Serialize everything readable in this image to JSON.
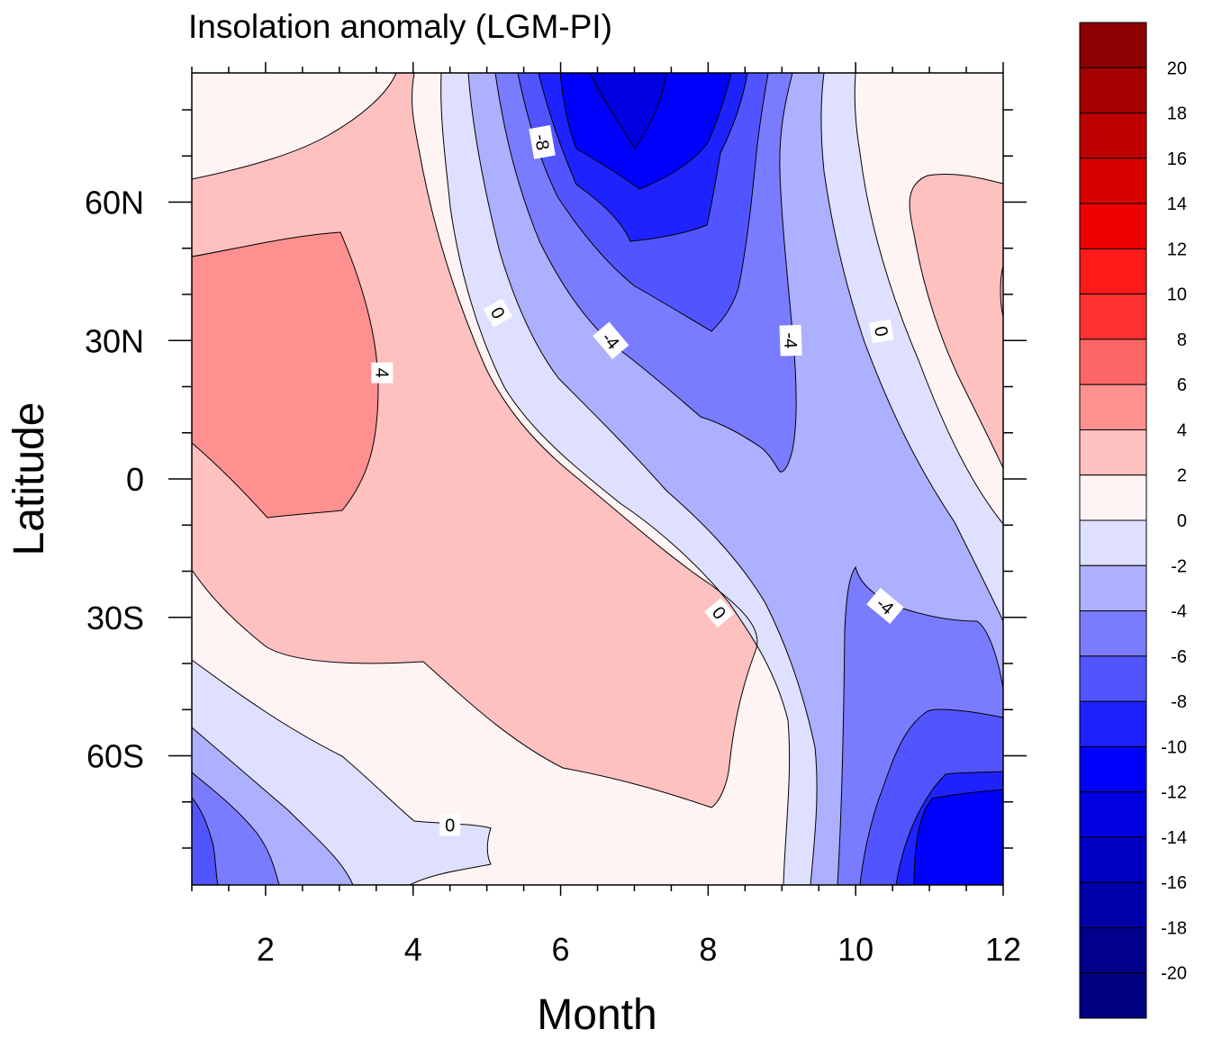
{
  "chart_data": {
    "type": "contour",
    "title": "Insolation anomaly (LGM-PI)",
    "xlabel": "Month",
    "ylabel": "Latitude",
    "xlim": [
      1,
      12
    ],
    "ylim": [
      -88,
      88
    ],
    "xticks": [
      2,
      4,
      6,
      8,
      10,
      12
    ],
    "yticks": [
      {
        "value": 60,
        "label": "60N"
      },
      {
        "value": 30,
        "label": "30N"
      },
      {
        "value": 0,
        "label": "0"
      },
      {
        "value": -30,
        "label": "30S"
      },
      {
        "value": -60,
        "label": "60S"
      }
    ],
    "colorbar": {
      "levels": [
        20,
        18,
        16,
        14,
        12,
        10,
        8,
        6,
        4,
        2,
        0,
        -2,
        -4,
        -6,
        -8,
        -10,
        -12,
        -14,
        -16,
        -18,
        -20
      ],
      "colors": [
        "#8b0000",
        "#a50000",
        "#bf0000",
        "#d90000",
        "#f00000",
        "#ff1a1a",
        "#ff3333",
        "#ff6666",
        "#ff9090",
        "#ffc0c0",
        "#fff4f4",
        "#dfe0ff",
        "#adafff",
        "#7a7cff",
        "#5255ff",
        "#1e22ff",
        "#0000ff",
        "#0000e0",
        "#0000c4",
        "#0000a8",
        "#00008b",
        "#000080"
      ]
    },
    "contour_labels": [
      {
        "text": "-8",
        "month": 5.75,
        "lat": 73,
        "angle": 80
      },
      {
        "text": "0",
        "month": 5.15,
        "lat": 36,
        "angle": 60
      },
      {
        "text": "-4",
        "month": 6.68,
        "lat": 30,
        "angle": 50
      },
      {
        "text": "-4",
        "month": 9.12,
        "lat": 30,
        "angle": 88
      },
      {
        "text": "0",
        "month": 10.35,
        "lat": 32,
        "angle": 80
      },
      {
        "text": "4",
        "month": 3.58,
        "lat": 23,
        "angle": 90
      },
      {
        "text": "0",
        "month": 8.15,
        "lat": -29,
        "angle": 50
      },
      {
        "text": "-4",
        "month": 10.4,
        "lat": -27.5,
        "angle": 40
      },
      {
        "text": "0",
        "month": 4.5,
        "lat": -75,
        "angle": 0
      }
    ]
  }
}
